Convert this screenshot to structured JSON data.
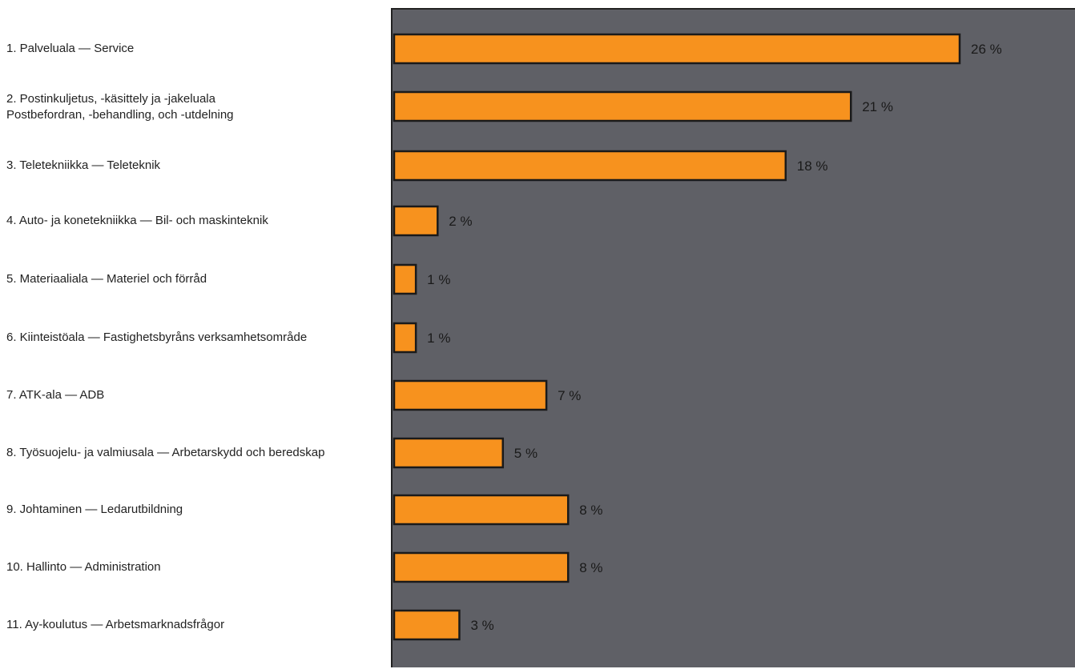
{
  "chart_data": {
    "type": "bar",
    "orientation": "horizontal",
    "categories": [
      "1. Palveluala — Service",
      "2. Postinkuljetus, -käsittely ja -jakeluala\nPostbefordran, -behandling, och -utdelning",
      "3. Teletekniikka — Teleteknik",
      "4. Auto- ja konetekniikka — Bil- och maskinteknik",
      "5. Materiaaliala — Materiel och förråd",
      "6. Kiinteistöala — Fastighetsbyråns verksamhetsområde",
      "7. ATK-ala — ADB",
      "8. Työsuojelu- ja valmiusala — Arbetarskydd och beredskap",
      "9. Johtaminen — Ledarutbildning",
      "10. Hallinto — Administration",
      "11. Ay-koulutus — Arbetsmarknadsfrågor"
    ],
    "values": [
      26,
      21,
      18,
      2,
      1,
      1,
      7,
      5,
      8,
      8,
      3
    ],
    "value_labels": [
      "26 %",
      "21 %",
      "18 %",
      "2 %",
      "1 %",
      "1 %",
      "7 %",
      "5 %",
      "8 %",
      "8 %",
      "3 %"
    ],
    "xlim": [
      0,
      30
    ],
    "grid": false,
    "colors": {
      "bar": "#f7921e",
      "bar_border": "#1a1a1a",
      "plot_bg": "#5f6066",
      "value_text": "#1a1a1a",
      "label_text": "#222222"
    }
  }
}
